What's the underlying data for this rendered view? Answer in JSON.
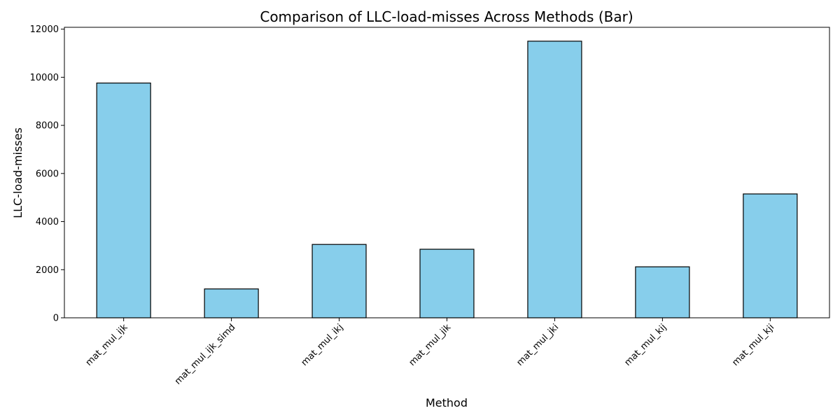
{
  "chart_data": {
    "type": "bar",
    "title": "Comparison of LLC-load-misses Across Methods (Bar)",
    "xlabel": "Method",
    "ylabel": "LLC-load-misses",
    "categories": [
      "mat_mul_ijk",
      "mat_mul_ijk_simd",
      "mat_mul_ikj",
      "mat_mul_jik",
      "mat_mul_jki",
      "mat_mul_kij",
      "mat_mul_kji"
    ],
    "values": [
      9760,
      1200,
      3050,
      2850,
      11500,
      2120,
      5150
    ],
    "ylim": [
      0,
      12077
    ],
    "yticks": [
      0,
      2000,
      4000,
      6000,
      8000,
      10000,
      12000
    ],
    "bar_color": "#87ceeb",
    "edge_color": "#000000",
    "grid": false,
    "legend": "none"
  }
}
